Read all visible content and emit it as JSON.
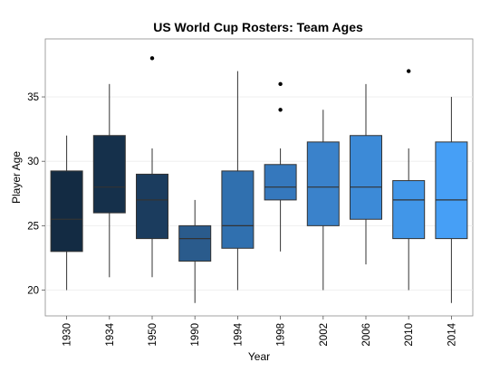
{
  "chart_data": {
    "type": "boxplot",
    "title": "US World Cup Rosters: Team Ages",
    "xlabel": "Year",
    "ylabel": "Player Age",
    "ylim": [
      18,
      39.5
    ],
    "yticks": [
      20,
      25,
      30,
      35
    ],
    "grid": true,
    "legend": "none",
    "categories": [
      "1930",
      "1934",
      "1950",
      "1990",
      "1994",
      "1998",
      "2002",
      "2006",
      "2010",
      "2014"
    ],
    "boxes": [
      {
        "category": "1930",
        "whisker_low": 20,
        "q1": 23,
        "median": 25.5,
        "q3": 29.25,
        "whisker_high": 32,
        "outliers": [],
        "color": "#132B43"
      },
      {
        "category": "1934",
        "whisker_low": 21,
        "q1": 26,
        "median": 28,
        "q3": 32,
        "whisker_high": 36,
        "outliers": [],
        "color": "#15304B"
      },
      {
        "category": "1950",
        "whisker_low": 21,
        "q1": 24,
        "median": 27,
        "q3": 29,
        "whisker_high": 31,
        "outliers": [
          38
        ],
        "color": "#1B3C5E"
      },
      {
        "category": "1990",
        "whisker_low": 19,
        "q1": 22.25,
        "median": 24,
        "q3": 25,
        "whisker_high": 27,
        "outliers": [],
        "color": "#2A5B8C"
      },
      {
        "category": "1994",
        "whisker_low": 20,
        "q1": 23.25,
        "median": 25,
        "q3": 29.25,
        "whisker_high": 37,
        "outliers": [],
        "color": "#3070AF"
      },
      {
        "category": "1998",
        "whisker_low": 23,
        "q1": 27,
        "median": 28,
        "q3": 29.75,
        "whisker_high": 31,
        "outliers": [
          34,
          36
        ],
        "color": "#3578BD"
      },
      {
        "category": "2002",
        "whisker_low": 20,
        "q1": 25,
        "median": 28,
        "q3": 31.5,
        "whisker_high": 34,
        "outliers": [],
        "color": "#3A82CB"
      },
      {
        "category": "2006",
        "whisker_low": 22,
        "q1": 25.5,
        "median": 28,
        "q3": 32,
        "whisker_high": 36,
        "outliers": [],
        "color": "#3C8AD7"
      },
      {
        "category": "2010",
        "whisker_low": 20,
        "q1": 24,
        "median": 27,
        "q3": 28.5,
        "whisker_high": 31,
        "outliers": [
          37
        ],
        "color": "#4196E8"
      },
      {
        "category": "2014",
        "whisker_low": 19,
        "q1": 24,
        "median": 27,
        "q3": 31.5,
        "whisker_high": 35,
        "outliers": [],
        "color": "#469FF6"
      }
    ]
  }
}
